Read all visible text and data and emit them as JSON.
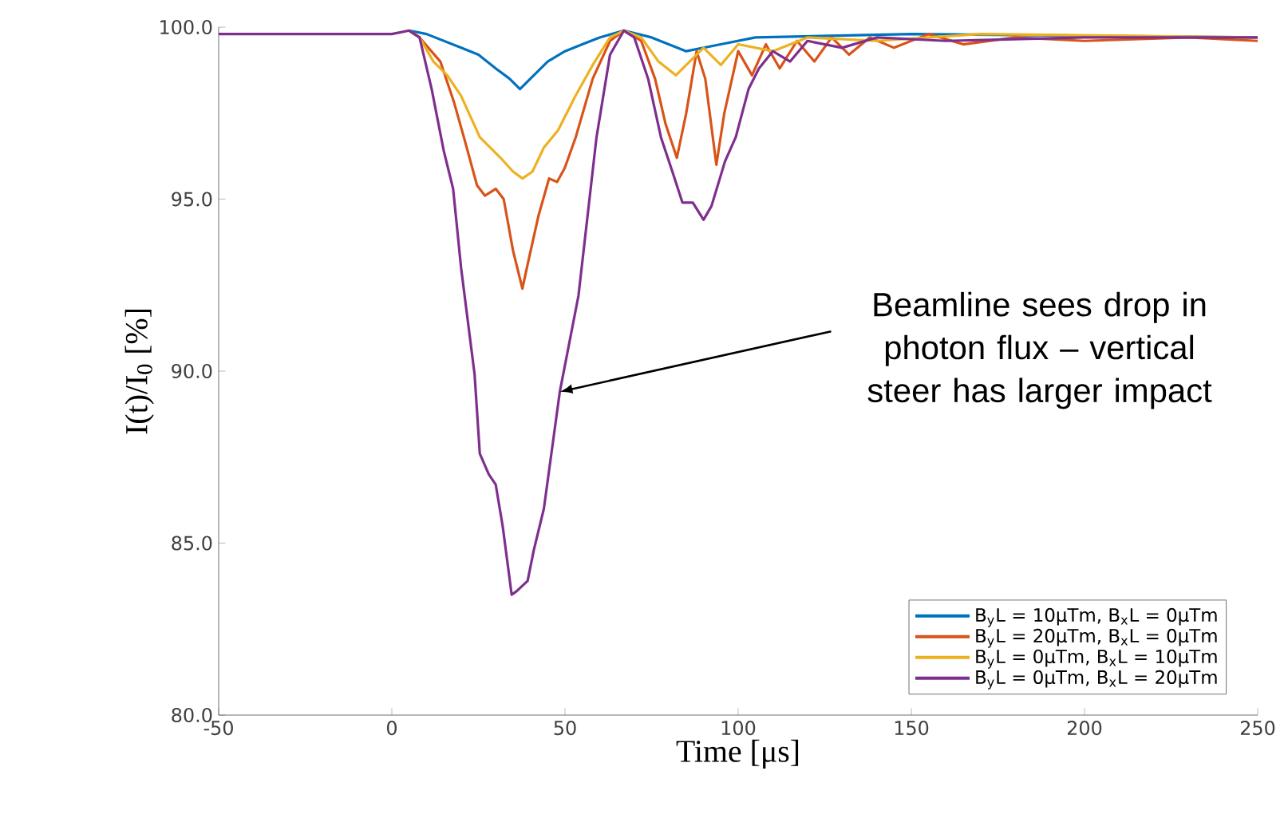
{
  "chart_data": {
    "type": "line",
    "xlabel": "Time [μs]",
    "ylabel": "I(t)/I$_{0}$ [%]",
    "xlim": [
      -50,
      250
    ],
    "ylim": [
      80,
      100
    ],
    "xticks": [
      -50,
      0,
      50,
      100,
      150,
      200,
      250
    ],
    "yticks": [
      {
        "value": 80,
        "label": "80.0"
      },
      {
        "value": 85,
        "label": "85.0"
      },
      {
        "value": 90,
        "label": "90.0"
      },
      {
        "value": 95,
        "label": "95.0"
      },
      {
        "value": 100,
        "label": "100.0"
      }
    ],
    "grid": false,
    "legend": "bottom right",
    "marker": "none",
    "line_style": "solid",
    "annotations": [
      {
        "text": "Beamline sees drop in photon flux – vertical steer has larger impact",
        "x": 48.5,
        "y": 89.4
      }
    ],
    "series": [
      {
        "name": "B$_{y}$L = 10μTm, B$_{x}$L = 0μTm",
        "color": "#0072bd",
        "x": [
          5,
          10,
          20,
          25,
          30,
          34,
          37,
          40,
          45,
          50,
          55,
          60,
          67,
          75,
          85,
          95,
          105,
          150,
          250
        ],
        "values": [
          99.9,
          99.8,
          99.4,
          99.2,
          98.8,
          98.5,
          98.2,
          98.5,
          99.0,
          99.3,
          99.5,
          99.7,
          99.9,
          99.7,
          99.3,
          99.5,
          99.7,
          99.8,
          99.7
        ]
      },
      {
        "name": "B$_{y}$L = 20μTm, B$_{x}$L = 0μTm",
        "color": "#d95319",
        "x": [
          5,
          8,
          14,
          18,
          20.8,
          24.6,
          26.9,
          30,
          32.3,
          35,
          37.7,
          39.2,
          42.3,
          45.4,
          47.7,
          49.9,
          53.1,
          58,
          63,
          67,
          72,
          76,
          79,
          82.3,
          85,
          88,
          90.5,
          93.7,
          96,
          100,
          104,
          108,
          112,
          117,
          122,
          127,
          132,
          138,
          145,
          155,
          165,
          180,
          200,
          230,
          250
        ],
        "values": [
          99.9,
          99.7,
          99.0,
          97.8,
          96.8,
          95.4,
          95.1,
          95.3,
          95.0,
          93.5,
          92.4,
          93.1,
          94.5,
          95.6,
          95.5,
          95.9,
          96.8,
          98.5,
          99.6,
          99.9,
          99.6,
          98.5,
          97.2,
          96.2,
          97.5,
          99.3,
          98.5,
          96.0,
          97.5,
          99.3,
          98.6,
          99.5,
          98.8,
          99.6,
          99.0,
          99.7,
          99.2,
          99.7,
          99.4,
          99.8,
          99.5,
          99.7,
          99.6,
          99.7,
          99.6
        ]
      },
      {
        "name": "B$_{y}$L = 0μTm, B$_{x}$L = 10μTm",
        "color": "#edb120",
        "x": [
          5,
          8,
          12,
          16,
          20,
          25.4,
          31.4,
          35,
          37.7,
          40.6,
          43.9,
          48,
          53,
          58,
          63,
          67,
          72,
          77,
          82,
          86,
          90,
          95,
          100,
          110,
          120,
          140,
          170,
          250
        ],
        "values": [
          99.9,
          99.7,
          99.0,
          98.6,
          98.0,
          96.8,
          96.2,
          95.8,
          95.6,
          95.8,
          96.5,
          97.0,
          98.0,
          98.9,
          99.7,
          99.9,
          99.7,
          99.0,
          98.6,
          99.0,
          99.4,
          98.9,
          99.5,
          99.3,
          99.7,
          99.6,
          99.8,
          99.7
        ]
      },
      {
        "name": "B$_{y}$L = 0μTm, B$_{x}$L = 20μTm",
        "color": "#7e2f8e",
        "x": [
          -50,
          -20,
          0,
          5,
          8,
          11.5,
          15,
          17.7,
          20,
          23.9,
          25.4,
          28,
          30,
          32,
          34.6,
          36,
          39.2,
          41,
          43.9,
          48.5,
          53.9,
          59.1,
          63,
          67,
          70,
          74,
          77.7,
          81,
          83.9,
          86.9,
          90,
          92.3,
          96.2,
          99.3,
          103,
          106,
          110,
          115,
          120,
          130,
          140,
          160,
          200,
          250
        ],
        "values": [
          99.8,
          99.8,
          99.8,
          99.9,
          99.7,
          98.2,
          96.4,
          95.3,
          93.0,
          89.9,
          87.6,
          87.0,
          86.7,
          85.5,
          83.5,
          83.6,
          83.9,
          84.8,
          86.0,
          89.4,
          92.2,
          96.8,
          99.2,
          99.9,
          99.7,
          98.5,
          96.8,
          95.8,
          94.9,
          94.9,
          94.4,
          94.8,
          96.1,
          96.8,
          98.2,
          98.8,
          99.3,
          99.0,
          99.6,
          99.4,
          99.7,
          99.6,
          99.7,
          99.7
        ]
      }
    ]
  }
}
